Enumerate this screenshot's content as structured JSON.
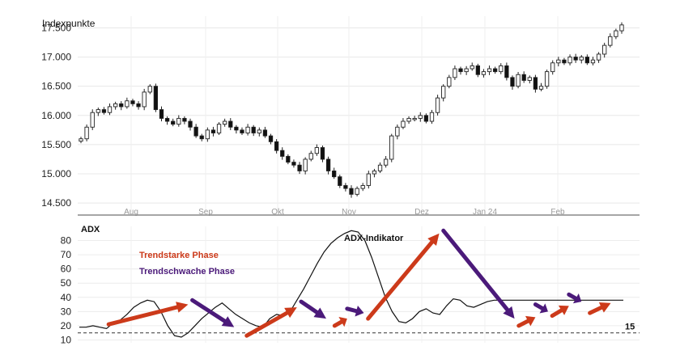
{
  "chart_data": [
    {
      "type": "candlestick",
      "ylabel": "Indexpunkte",
      "ylim": [
        14350,
        17700
      ],
      "yticks": [
        "14.500",
        "15.000",
        "15.500",
        "16.000",
        "16.500",
        "17.000",
        "17.500"
      ],
      "ytick_values": [
        14500,
        15000,
        15500,
        16000,
        16500,
        17000,
        17500
      ],
      "months": [
        "Aug",
        "Sep",
        "Okt",
        "Nov",
        "Dez",
        "Jan 24",
        "Feb"
      ],
      "grid": true,
      "close_series": [
        15600,
        15800,
        16050,
        16100,
        16050,
        16150,
        16200,
        16150,
        16250,
        16200,
        16150,
        16400,
        16500,
        16100,
        15950,
        15900,
        15850,
        15950,
        15900,
        15800,
        15650,
        15600,
        15750,
        15700,
        15850,
        15900,
        15800,
        15750,
        15700,
        15800,
        15700,
        15750,
        15650,
        15550,
        15400,
        15300,
        15200,
        15150,
        15050,
        15250,
        15350,
        15450,
        15250,
        15050,
        14950,
        14800,
        14750,
        14650,
        14750,
        14800,
        15000,
        15050,
        15150,
        15250,
        15650,
        15800,
        15900,
        15950,
        15950,
        16000,
        15900,
        16050,
        16300,
        16500,
        16650,
        16800,
        16750,
        16800,
        16850,
        16700,
        16750,
        16800,
        16750,
        16850,
        16650,
        16500,
        16700,
        16600,
        16650,
        16450,
        16500,
        16750,
        16900,
        16950,
        16900,
        17000,
        16950,
        17000,
        16900,
        16950,
        17050,
        17200,
        17350,
        17450,
        17550
      ]
    },
    {
      "type": "line",
      "title": "ADX",
      "ylim": [
        8,
        90
      ],
      "yticks": [
        "10",
        "20",
        "30",
        "40",
        "50",
        "60",
        "70",
        "80"
      ],
      "ytick_values": [
        10,
        20,
        30,
        40,
        50,
        60,
        70,
        80
      ],
      "threshold": {
        "value": 15,
        "label": "15",
        "style": "dashed"
      },
      "series": [
        {
          "name": "ADX-Indikator",
          "x": [
            0,
            5,
            10,
            15,
            20,
            25,
            30,
            35,
            40,
            45,
            50,
            55,
            60,
            65,
            70,
            75,
            80,
            85,
            90,
            95,
            100,
            105,
            110,
            115,
            120,
            125,
            130,
            135,
            140,
            145,
            150,
            155,
            160,
            165,
            170,
            175,
            180,
            185,
            190,
            195,
            200,
            205,
            210,
            215,
            220,
            225,
            230,
            235,
            240,
            245,
            250,
            255,
            260,
            265,
            270,
            275,
            280,
            285,
            290,
            295,
            300,
            305,
            310,
            315,
            320,
            325,
            330,
            335,
            340,
            345,
            350,
            355,
            360,
            365,
            370,
            375,
            380,
            385,
            390,
            395,
            400
          ],
          "values": [
            19,
            19,
            20,
            19,
            18,
            22,
            24,
            28,
            33,
            36,
            38,
            37,
            30,
            20,
            13,
            12,
            15,
            20,
            25,
            29,
            33,
            36,
            32,
            28,
            25,
            22,
            20,
            19,
            25,
            28,
            27,
            30,
            38,
            46,
            55,
            64,
            72,
            78,
            82,
            85,
            87,
            86,
            80,
            68,
            54,
            40,
            30,
            23,
            22,
            25,
            30,
            32,
            29,
            28,
            34,
            39,
            38,
            34,
            33,
            35,
            37,
            38,
            38,
            38,
            38,
            38,
            38,
            38,
            38,
            38,
            38,
            38,
            38,
            38,
            38,
            38,
            38,
            38,
            38,
            38,
            38
          ]
        }
      ],
      "legend": [
        {
          "label": "Trendstarke Phase",
          "color": "#cc3a1a"
        },
        {
          "label": "Trendschwache Phase",
          "color": "#4b1a7a"
        }
      ],
      "annotation": "ADX-Indikator",
      "arrows": [
        {
          "phase": "strong",
          "from_point": [
            7,
            21
          ],
          "to_point": [
            26,
            35
          ]
        },
        {
          "phase": "weak",
          "from_point": [
            27,
            38
          ],
          "to_point": [
            37,
            19
          ]
        },
        {
          "phase": "strong",
          "from_point": [
            40,
            13
          ],
          "to_point": [
            52,
            33
          ]
        },
        {
          "phase": "weak",
          "from_point": [
            53,
            37
          ],
          "to_point": [
            59,
            25
          ]
        },
        {
          "phase": "strong",
          "from_point": [
            61,
            20
          ],
          "to_point": [
            64,
            25
          ]
        },
        {
          "phase": "weak",
          "from_point": [
            64,
            32
          ],
          "to_point": [
            68,
            29
          ]
        },
        {
          "phase": "strong",
          "from_point": [
            69,
            25
          ],
          "to_point": [
            86,
            85
          ]
        },
        {
          "phase": "weak",
          "from_point": [
            87,
            87
          ],
          "to_point": [
            104,
            25
          ]
        },
        {
          "phase": "strong",
          "from_point": [
            105,
            20
          ],
          "to_point": [
            109,
            26
          ]
        },
        {
          "phase": "weak",
          "from_point": [
            109,
            35
          ],
          "to_point": [
            112,
            30
          ]
        },
        {
          "phase": "strong",
          "from_point": [
            113,
            27
          ],
          "to_point": [
            117,
            34
          ]
        },
        {
          "phase": "weak",
          "from_point": [
            117,
            42
          ],
          "to_point": [
            120,
            37
          ]
        },
        {
          "phase": "strong",
          "from_point": [
            122,
            29
          ],
          "to_point": [
            127,
            36
          ]
        }
      ]
    }
  ],
  "colors": {
    "strong": "#cc3a1a",
    "weak": "#4b1a7a",
    "grid": "#e6e6e6",
    "candle_fill_up": "#ffffff",
    "candle_fill_down": "#111111"
  }
}
